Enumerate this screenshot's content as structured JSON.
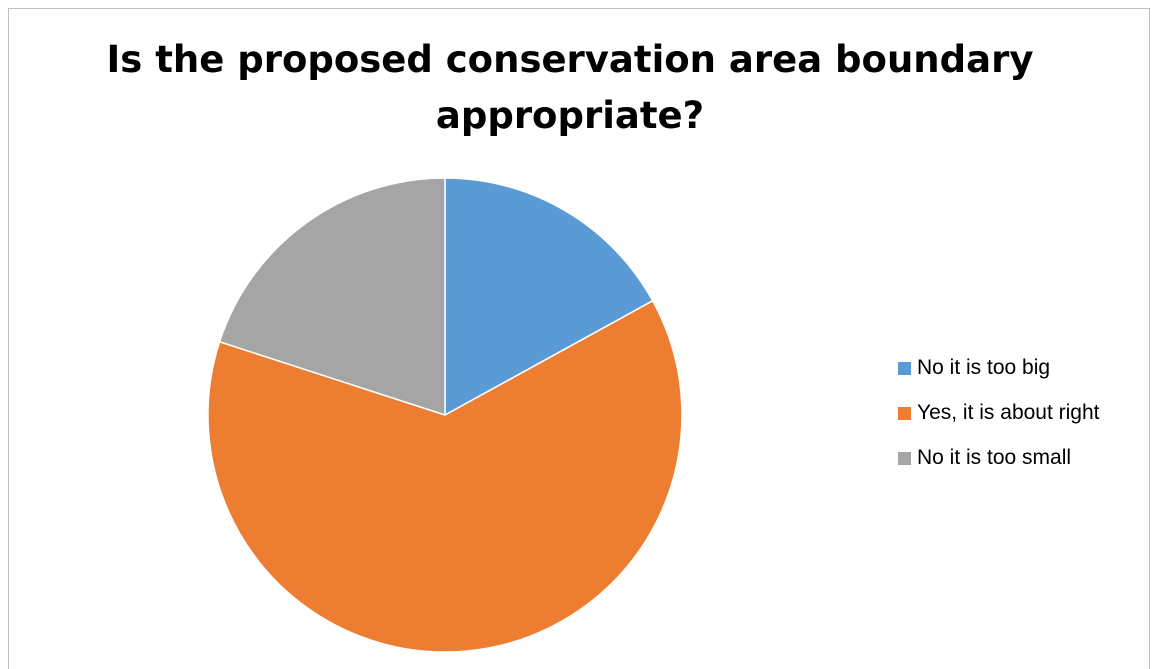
{
  "chart_data": {
    "type": "pie",
    "title": "Is the proposed conservation area boundary appropriate?",
    "categories": [
      "No it is too big",
      "Yes, it is about right",
      "No it is too small"
    ],
    "values": [
      17,
      63,
      20
    ],
    "colors": [
      "#5B9BD5",
      "#ED7D31",
      "#A5A5A5"
    ],
    "start_angle_deg": 0,
    "direction": "clockwise",
    "legend_position": "right"
  }
}
